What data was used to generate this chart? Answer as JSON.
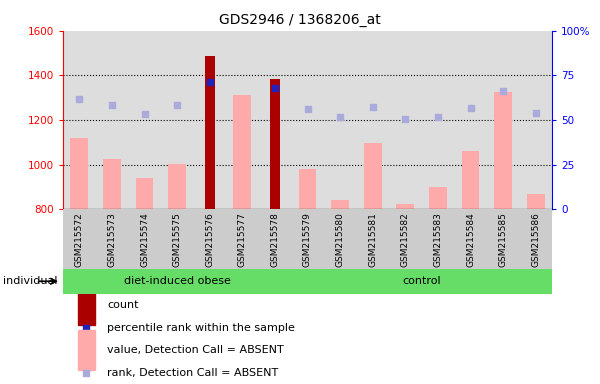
{
  "title": "GDS2946 / 1368206_at",
  "samples": [
    "GSM215572",
    "GSM215573",
    "GSM215574",
    "GSM215575",
    "GSM215576",
    "GSM215577",
    "GSM215578",
    "GSM215579",
    "GSM215580",
    "GSM215581",
    "GSM215582",
    "GSM215583",
    "GSM215584",
    "GSM215585",
    "GSM215586"
  ],
  "groups": [
    {
      "name": "diet-induced obese",
      "start": 0,
      "end": 7,
      "color": "#66dd66"
    },
    {
      "name": "control",
      "start": 7,
      "end": 15,
      "color": "#66dd66"
    }
  ],
  "value_absent": [
    1120,
    1025,
    940,
    1005,
    null,
    1310,
    null,
    980,
    840,
    1095,
    825,
    900,
    1060,
    1325,
    870
  ],
  "rank_absent": [
    1295,
    1265,
    1225,
    1265,
    null,
    null,
    null,
    1250,
    1215,
    1260,
    1205,
    1215,
    1255,
    1330,
    1230
  ],
  "count": [
    null,
    null,
    null,
    null,
    1485,
    null,
    1385,
    null,
    null,
    null,
    null,
    null,
    null,
    null,
    null
  ],
  "percentile_rank": [
    null,
    null,
    null,
    null,
    1370,
    null,
    1345,
    null,
    null,
    null,
    null,
    null,
    null,
    null,
    null
  ],
  "ylim_left": [
    800,
    1600
  ],
  "ylim_right": [
    0,
    100
  ],
  "yticks_left": [
    800,
    1000,
    1200,
    1400,
    1600
  ],
  "yticks_right": [
    0,
    25,
    50,
    75,
    100
  ],
  "bar_color_value": "#ffaaaa",
  "bar_color_count": "#aa0000",
  "square_color_rank": "#aaaadd",
  "square_color_percentile": "#2222bb"
}
